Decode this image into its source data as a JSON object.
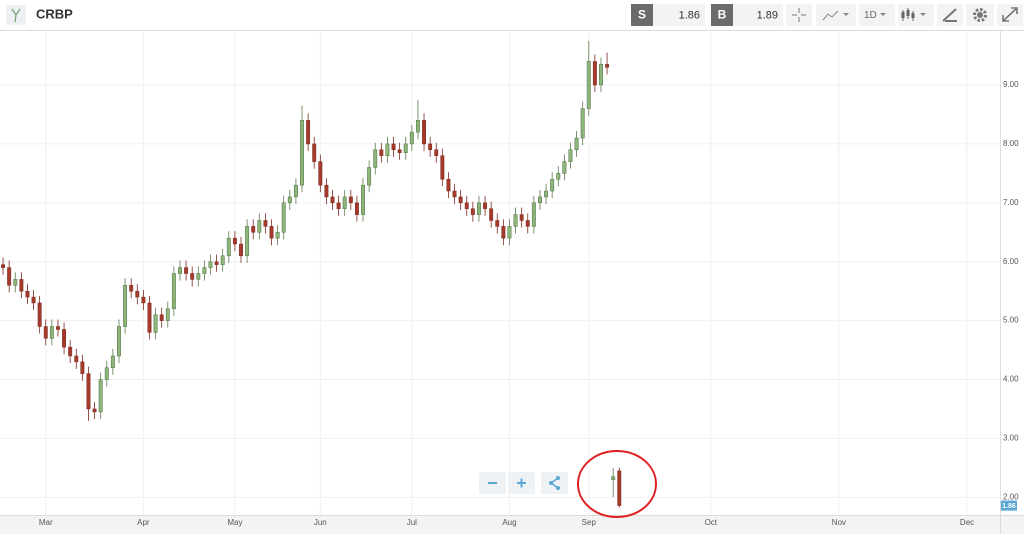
{
  "toolbar": {
    "symbol": "CRBP",
    "sell_tag": "S",
    "sell_price": "1.86",
    "buy_tag": "B",
    "buy_price": "1.89",
    "interval": "1D"
  },
  "chart_data": {
    "type": "candlestick",
    "open": [
      5.95,
      5.9,
      5.6,
      5.7,
      5.5,
      5.4,
      5.3,
      4.9,
      4.7,
      4.9,
      4.85,
      4.55,
      4.4,
      4.3,
      4.1,
      3.5,
      3.45,
      4.0,
      4.2,
      4.4,
      4.9,
      5.6,
      5.5,
      5.4,
      5.3,
      4.8,
      5.1,
      5.0,
      5.2,
      5.8,
      5.9,
      5.8,
      5.7,
      5.8,
      5.9,
      6.0,
      5.95,
      6.1,
      6.4,
      6.3,
      6.1,
      6.6,
      6.5,
      6.7,
      6.6,
      6.4,
      6.5,
      7.0,
      7.1,
      7.3,
      8.4,
      8.0,
      7.7,
      7.3,
      7.1,
      7.0,
      6.9,
      7.1,
      7.0,
      6.8,
      7.3,
      7.6,
      7.9,
      7.8,
      8.0,
      7.9,
      7.85,
      8.0,
      8.2,
      8.4,
      8.0,
      7.9,
      7.8,
      7.4,
      7.2,
      7.1,
      7.0,
      6.9,
      6.8,
      7.0,
      6.9,
      6.7,
      6.6,
      6.4,
      6.6,
      6.8,
      6.7,
      6.6,
      7.0,
      7.1,
      7.2,
      7.4,
      7.5,
      7.7,
      7.9,
      8.1,
      8.6,
      9.4,
      9.0,
      9.35,
      2.3,
      2.45
    ],
    "high": [
      6.07,
      6.02,
      5.82,
      5.82,
      5.62,
      5.52,
      5.42,
      5.02,
      5.02,
      5.02,
      4.97,
      4.67,
      4.52,
      4.42,
      4.22,
      3.62,
      4.12,
      4.32,
      4.52,
      5.02,
      5.72,
      5.72,
      5.62,
      5.52,
      5.42,
      5.22,
      5.22,
      5.32,
      5.92,
      6.02,
      6.02,
      5.92,
      5.92,
      6.02,
      6.12,
      6.12,
      6.22,
      6.52,
      6.52,
      6.42,
      6.72,
      6.72,
      6.82,
      6.82,
      6.72,
      6.62,
      7.12,
      7.22,
      7.42,
      8.65,
      8.52,
      8.12,
      7.82,
      7.42,
      7.22,
      7.12,
      7.22,
      7.22,
      7.12,
      7.42,
      7.72,
      8.02,
      8.02,
      8.12,
      8.12,
      8.02,
      8.12,
      8.32,
      8.75,
      8.52,
      8.12,
      8.02,
      7.92,
      7.52,
      7.32,
      7.22,
      7.12,
      7.02,
      7.12,
      7.12,
      7.02,
      6.82,
      6.72,
      6.72,
      6.92,
      6.92,
      6.82,
      7.12,
      7.22,
      7.32,
      7.52,
      7.62,
      7.82,
      8.02,
      8.22,
      8.72,
      9.75,
      9.52,
      9.47,
      9.55,
      2.5,
      2.5
    ],
    "low": [
      5.78,
      5.48,
      5.48,
      5.38,
      5.28,
      5.18,
      4.78,
      4.58,
      4.58,
      4.73,
      4.43,
      4.28,
      4.18,
      3.98,
      3.3,
      3.33,
      3.33,
      3.88,
      4.08,
      4.28,
      4.78,
      5.38,
      5.28,
      5.18,
      4.68,
      4.68,
      4.88,
      4.88,
      5.08,
      5.68,
      5.68,
      5.58,
      5.58,
      5.68,
      5.78,
      5.83,
      5.83,
      5.98,
      6.18,
      5.98,
      5.98,
      6.38,
      6.38,
      6.48,
      6.28,
      6.28,
      6.38,
      6.88,
      6.98,
      7.18,
      7.88,
      7.58,
      7.18,
      6.98,
      6.88,
      6.78,
      6.78,
      6.88,
      6.68,
      6.68,
      7.18,
      7.48,
      7.68,
      7.68,
      7.78,
      7.73,
      7.73,
      7.88,
      8.08,
      7.88,
      7.78,
      7.68,
      7.28,
      7.08,
      6.98,
      6.88,
      6.78,
      6.68,
      6.68,
      6.78,
      6.58,
      6.48,
      6.28,
      6.28,
      6.48,
      6.58,
      6.48,
      6.48,
      6.88,
      6.98,
      7.08,
      7.28,
      7.38,
      7.58,
      7.78,
      7.98,
      8.48,
      8.88,
      8.88,
      9.18,
      2.0,
      1.83
    ],
    "close": [
      5.9,
      5.6,
      5.7,
      5.5,
      5.4,
      5.3,
      4.9,
      4.7,
      4.9,
      4.85,
      4.55,
      4.4,
      4.3,
      4.1,
      3.5,
      3.45,
      4.0,
      4.2,
      4.4,
      4.9,
      5.6,
      5.5,
      5.4,
      5.3,
      4.8,
      5.1,
      5.0,
      5.2,
      5.8,
      5.9,
      5.8,
      5.7,
      5.8,
      5.9,
      6.0,
      5.95,
      6.1,
      6.4,
      6.3,
      6.1,
      6.6,
      6.5,
      6.7,
      6.6,
      6.4,
      6.5,
      7.0,
      7.1,
      7.3,
      8.4,
      8.0,
      7.7,
      7.3,
      7.1,
      7.0,
      6.9,
      7.1,
      7.0,
      6.8,
      7.3,
      7.6,
      7.9,
      7.8,
      8.0,
      7.9,
      7.85,
      8.0,
      8.2,
      8.4,
      8.0,
      7.9,
      7.8,
      7.4,
      7.2,
      7.1,
      7.0,
      6.9,
      6.8,
      7.0,
      6.9,
      6.7,
      6.6,
      6.4,
      6.6,
      6.8,
      6.7,
      6.6,
      7.0,
      7.1,
      7.2,
      7.4,
      7.5,
      7.7,
      7.9,
      8.1,
      8.6,
      9.4,
      9.0,
      9.35,
      9.3,
      2.35,
      1.86
    ],
    "up_color": "#8db57a",
    "down_color": "#a53a2c",
    "xlim": [
      -0.5,
      163.4
    ],
    "xticks": [
      {
        "value": 7,
        "label": "Mar"
      },
      {
        "value": 23,
        "label": "Apr"
      },
      {
        "value": 38,
        "label": "May"
      },
      {
        "value": 52,
        "label": "Jun"
      },
      {
        "value": 67,
        "label": "Jul"
      },
      {
        "value": 83,
        "label": "Aug"
      },
      {
        "value": 96,
        "label": "Sep"
      },
      {
        "value": 116,
        "label": "Oct"
      },
      {
        "value": 137,
        "label": "Nov"
      },
      {
        "value": 158,
        "label": "Dec"
      }
    ],
    "ylim": [
      1.7,
      9.9
    ],
    "yticks": [
      {
        "value": 2,
        "label": "2.00"
      },
      {
        "value": 3,
        "label": "3.00"
      },
      {
        "value": 4,
        "label": "4.00"
      },
      {
        "value": 5,
        "label": "5.00"
      },
      {
        "value": 6,
        "label": "6.00"
      },
      {
        "value": 7,
        "label": "7.00"
      },
      {
        "value": 8,
        "label": "8.00"
      },
      {
        "value": 9,
        "label": "9.00"
      }
    ],
    "price_marker": {
      "value": 1.86,
      "label": "1.86"
    },
    "grid": true
  }
}
